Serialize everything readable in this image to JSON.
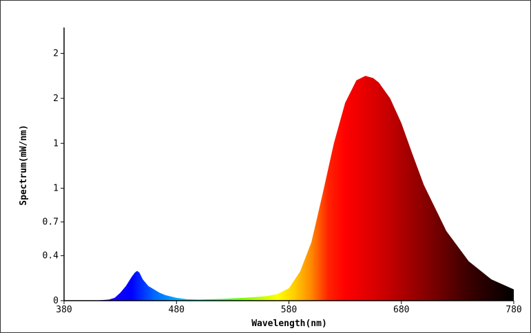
{
  "chart_data": {
    "type": "area",
    "title": "",
    "xlabel": "Wavelength(nm)",
    "ylabel": "Spectrum(mW/nm)",
    "xlim": [
      380,
      780
    ],
    "ylim": [
      0,
      2.43
    ],
    "grid": false,
    "x_ticks": [
      {
        "value": 380,
        "label": "380"
      },
      {
        "value": 480,
        "label": "480"
      },
      {
        "value": 580,
        "label": "580"
      },
      {
        "value": 680,
        "label": "680"
      },
      {
        "value": 780,
        "label": "780"
      }
    ],
    "y_ticks": [
      {
        "value": 0,
        "label": "0"
      },
      {
        "value": 0.4,
        "label": "0.4"
      },
      {
        "value": 0.7,
        "label": "0.7"
      },
      {
        "value": 1.0,
        "label": "1"
      },
      {
        "value": 1.4,
        "label": "1"
      },
      {
        "value": 1.8,
        "label": "2"
      },
      {
        "value": 2.2,
        "label": "2"
      }
    ],
    "fill": "wavelength spectrum colors",
    "series": [
      {
        "x": [
          380,
          400,
          410,
          420,
          425,
          430,
          435,
          440,
          443,
          445,
          447,
          450,
          455,
          460,
          465,
          470,
          480,
          490,
          500,
          520,
          540,
          560,
          570,
          580,
          590,
          600,
          610,
          620,
          630,
          640,
          648,
          655,
          660,
          670,
          680,
          690,
          700,
          720,
          740,
          760,
          780
        ],
        "y": [
          0,
          0,
          0.002,
          0.01,
          0.025,
          0.07,
          0.13,
          0.21,
          0.25,
          0.265,
          0.25,
          0.19,
          0.13,
          0.1,
          0.07,
          0.05,
          0.025,
          0.012,
          0.01,
          0.015,
          0.025,
          0.04,
          0.06,
          0.11,
          0.26,
          0.52,
          0.95,
          1.4,
          1.76,
          1.96,
          2.0,
          1.98,
          1.94,
          1.8,
          1.58,
          1.3,
          1.03,
          0.62,
          0.35,
          0.19,
          0.1
        ]
      }
    ]
  }
}
